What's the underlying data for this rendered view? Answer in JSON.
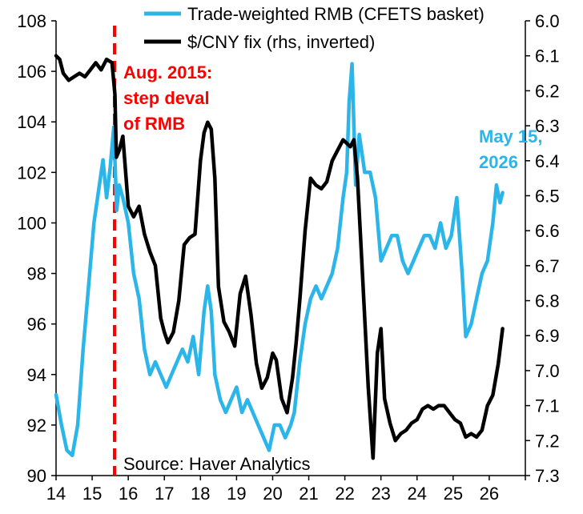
{
  "chart_data": {
    "type": "line",
    "title": "",
    "xlabel": "",
    "ylabel": "",
    "x_ticks": [
      "14",
      "15",
      "16",
      "17",
      "18",
      "19",
      "20",
      "21",
      "22",
      "23",
      "24",
      "25",
      "26"
    ],
    "x_range": [
      2014.0,
      2027.0
    ],
    "left_axis": {
      "range": [
        90,
        108
      ],
      "ticks": [
        "90",
        "92",
        "94",
        "96",
        "98",
        "100",
        "102",
        "104",
        "106",
        "108"
      ]
    },
    "right_axis": {
      "range": [
        6.0,
        7.3
      ],
      "inverted": true,
      "ticks": [
        "6.0",
        "6.1",
        "6.2",
        "6.3",
        "6.4",
        "6.5",
        "6.6",
        "6.7",
        "6.8",
        "6.9",
        "7.0",
        "7.1",
        "7.2",
        "7.3"
      ]
    },
    "grid": false,
    "legend_position": "top",
    "series": [
      {
        "name": "Trade-weighted RMB (CFETS basket)",
        "axis": "left",
        "color": "#2cb5e8",
        "x": [
          2014.0,
          2014.15,
          2014.3,
          2014.45,
          2014.6,
          2014.75,
          2014.9,
          2015.05,
          2015.2,
          2015.3,
          2015.4,
          2015.5,
          2015.6,
          2015.68,
          2015.75,
          2015.85,
          2016.0,
          2016.15,
          2016.3,
          2016.45,
          2016.6,
          2016.75,
          2016.9,
          2017.05,
          2017.2,
          2017.35,
          2017.5,
          2017.65,
          2017.8,
          2017.95,
          2018.1,
          2018.2,
          2018.3,
          2018.4,
          2018.55,
          2018.7,
          2018.85,
          2019.0,
          2019.15,
          2019.3,
          2019.45,
          2019.6,
          2019.75,
          2019.9,
          2020.05,
          2020.2,
          2020.35,
          2020.5,
          2020.6,
          2020.75,
          2020.9,
          2021.05,
          2021.2,
          2021.35,
          2021.5,
          2021.65,
          2021.8,
          2021.95,
          2022.05,
          2022.12,
          2022.2,
          2022.3,
          2022.4,
          2022.55,
          2022.7,
          2022.85,
          2023.0,
          2023.15,
          2023.3,
          2023.45,
          2023.6,
          2023.75,
          2023.9,
          2024.05,
          2024.2,
          2024.35,
          2024.5,
          2024.65,
          2024.8,
          2024.95,
          2025.1,
          2025.25,
          2025.35,
          2025.5,
          2025.65,
          2025.8,
          2025.95,
          2026.1,
          2026.2,
          2026.3,
          2026.37
        ],
        "y": [
          93.2,
          92.0,
          91.0,
          90.8,
          92.0,
          95.0,
          97.5,
          100.0,
          101.5,
          102.5,
          101.0,
          102.2,
          103.8,
          100.5,
          101.5,
          101.0,
          100.0,
          98.0,
          97.0,
          95.0,
          94.0,
          94.5,
          94.0,
          93.5,
          94.0,
          94.5,
          95.0,
          94.5,
          95.5,
          94.0,
          96.5,
          97.5,
          96.5,
          94.0,
          93.0,
          92.5,
          93.0,
          93.5,
          92.5,
          93.0,
          92.5,
          92.0,
          91.5,
          91.0,
          92.0,
          92.0,
          91.5,
          92.0,
          92.5,
          94.5,
          96.0,
          97.0,
          97.5,
          97.0,
          97.5,
          98.0,
          99.0,
          101.0,
          102.0,
          104.8,
          106.3,
          101.5,
          103.5,
          102.0,
          102.0,
          101.0,
          98.5,
          99.0,
          99.5,
          99.5,
          98.5,
          98.0,
          98.5,
          99.0,
          99.5,
          99.5,
          99.0,
          100.0,
          99.0,
          99.5,
          101.0,
          98.0,
          95.5,
          96.0,
          97.0,
          98.0,
          98.5,
          100.0,
          101.5,
          100.8,
          101.2
        ]
      },
      {
        "name": "$/CNY fix (rhs, inverted)",
        "axis": "right",
        "color": "#000000",
        "x": [
          2014.0,
          2014.1,
          2014.2,
          2014.35,
          2014.5,
          2014.65,
          2014.8,
          2014.95,
          2015.1,
          2015.25,
          2015.4,
          2015.55,
          2015.63,
          2015.67,
          2015.75,
          2015.85,
          2016.0,
          2016.15,
          2016.3,
          2016.45,
          2016.6,
          2016.75,
          2016.9,
          2017.0,
          2017.1,
          2017.25,
          2017.4,
          2017.55,
          2017.7,
          2017.85,
          2018.0,
          2018.1,
          2018.2,
          2018.3,
          2018.4,
          2018.5,
          2018.65,
          2018.8,
          2018.95,
          2019.1,
          2019.25,
          2019.4,
          2019.55,
          2019.7,
          2019.85,
          2020.0,
          2020.1,
          2020.25,
          2020.4,
          2020.55,
          2020.65,
          2020.75,
          2020.9,
          2021.05,
          2021.2,
          2021.35,
          2021.5,
          2021.65,
          2021.8,
          2021.95,
          2022.05,
          2022.15,
          2022.25,
          2022.35,
          2022.5,
          2022.65,
          2022.78,
          2022.9,
          2023.0,
          2023.1,
          2023.25,
          2023.4,
          2023.55,
          2023.7,
          2023.85,
          2024.0,
          2024.15,
          2024.3,
          2024.45,
          2024.6,
          2024.75,
          2024.9,
          2025.05,
          2025.2,
          2025.35,
          2025.5,
          2025.65,
          2025.8,
          2025.95,
          2026.1,
          2026.25,
          2026.37
        ],
        "y": [
          6.1,
          6.11,
          6.15,
          6.17,
          6.16,
          6.15,
          6.16,
          6.14,
          6.12,
          6.14,
          6.11,
          6.12,
          6.21,
          6.39,
          6.37,
          6.33,
          6.53,
          6.56,
          6.53,
          6.61,
          6.66,
          6.7,
          6.85,
          6.89,
          6.92,
          6.89,
          6.8,
          6.64,
          6.62,
          6.61,
          6.4,
          6.32,
          6.29,
          6.31,
          6.45,
          6.76,
          6.86,
          6.89,
          6.93,
          6.78,
          6.73,
          6.84,
          6.98,
          7.05,
          7.02,
          6.95,
          6.97,
          7.08,
          7.12,
          7.02,
          6.92,
          6.8,
          6.6,
          6.45,
          6.47,
          6.48,
          6.46,
          6.4,
          6.37,
          6.34,
          6.35,
          6.36,
          6.34,
          6.45,
          6.75,
          7.05,
          7.25,
          6.95,
          6.88,
          7.08,
          7.15,
          7.2,
          7.18,
          7.17,
          7.15,
          7.14,
          7.11,
          7.1,
          7.11,
          7.1,
          7.1,
          7.12,
          7.14,
          7.15,
          7.19,
          7.18,
          7.19,
          7.17,
          7.1,
          7.07,
          6.98,
          6.88
        ]
      }
    ],
    "annotations": [
      {
        "text": "Aug. 2015:",
        "color": "#ff0000"
      },
      {
        "text": "step deval",
        "color": "#ff0000"
      },
      {
        "text": "of RMB",
        "color": "#ff0000"
      },
      {
        "text": "May 15,",
        "color": "#2cb5e8"
      },
      {
        "text": "2026",
        "color": "#2cb5e8"
      }
    ],
    "vline": {
      "x": 2015.62,
      "color": "#ff0000",
      "style": "dashed"
    },
    "source": "Source: Haver Analytics"
  }
}
